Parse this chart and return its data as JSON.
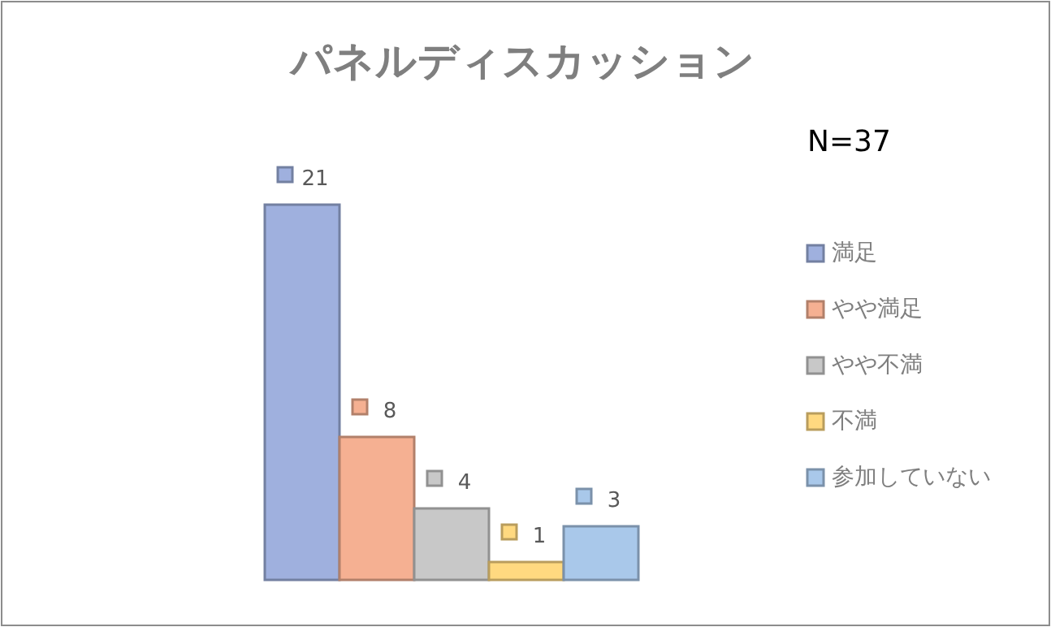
{
  "chart_data": {
    "type": "bar",
    "title": "パネルディスカッション",
    "categories": [
      null
    ],
    "series": [
      {
        "name": "満足",
        "color": "#9fb0de",
        "values": [
          21
        ]
      },
      {
        "name": "やや満足",
        "color": "#f5b092",
        "values": [
          8
        ]
      },
      {
        "name": "やや不満",
        "color": "#c8c8c8",
        "values": [
          4
        ]
      },
      {
        "name": "不満",
        "color": "#ffd980",
        "values": [
          1
        ]
      },
      {
        "name": "参加していない",
        "color": "#a9c8ea",
        "values": [
          3
        ]
      }
    ],
    "data_labels": true,
    "legend": "right",
    "annotations": [
      "N=37"
    ]
  }
}
